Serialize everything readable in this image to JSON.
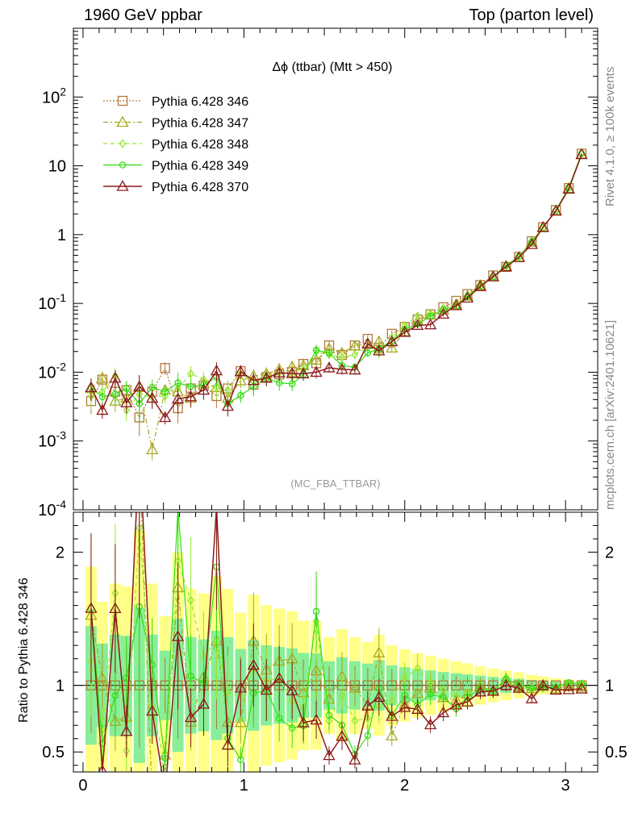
{
  "header": {
    "left": "1960 GeV ppbar",
    "right": "Top (parton level)"
  },
  "side_labels": {
    "rivet": "Rivet 4.1.0, ≥ 100k events",
    "mcplots": "mcplots.cern.ch [arXiv:2401.10621]"
  },
  "colors": {
    "s346": "#b07a3a",
    "s347": "#a8a820",
    "s348": "#99e633",
    "s349": "#33dd11",
    "s370": "#8b1a1a",
    "band_yellow": "#ffff88",
    "band_green": "#88ee99"
  },
  "chart_data": {
    "type": "line",
    "title": "Δϕ (ttbar) (Mtt > 450)",
    "watermark": "(MC_FBA_TTBAR)",
    "xlabel": "",
    "ylabel_ratio": "Ratio to Pythia 6.428 346",
    "xlim": [
      -0.06,
      3.2
    ],
    "ylim": [
      0.0001,
      1000
    ],
    "ylim_ratio": [
      0.35,
      2.3
    ],
    "yscale": "log",
    "x_ticks": [
      "0",
      "1",
      "2",
      "3"
    ],
    "y_ticks": [
      "10^-4",
      "10^-3",
      "10^-2",
      "10^-1",
      "1",
      "10",
      "10^2"
    ],
    "ratio_ticks": [
      "0.5",
      "1",
      "2"
    ],
    "legend": [
      "Pythia 6.428 346",
      "Pythia 6.428 347",
      "Pythia 6.428 348",
      "Pythia 6.428 349",
      "Pythia 6.428 370"
    ],
    "x": [
      0.05,
      0.12,
      0.2,
      0.27,
      0.35,
      0.43,
      0.51,
      0.59,
      0.67,
      0.75,
      0.83,
      0.9,
      0.98,
      1.06,
      1.14,
      1.22,
      1.3,
      1.37,
      1.45,
      1.53,
      1.61,
      1.69,
      1.77,
      1.84,
      1.92,
      2.0,
      2.08,
      2.16,
      2.24,
      2.32,
      2.39,
      2.47,
      2.55,
      2.63,
      2.71,
      2.79,
      2.86,
      2.94,
      3.02,
      3.1
    ],
    "series": [
      {
        "name": "Pythia 6.428 346",
        "marker": "square",
        "values": [
          0.0038,
          0.0078,
          0.0052,
          0.0055,
          0.0022,
          0.0052,
          0.0115,
          0.003,
          0.0058,
          0.0064,
          0.0045,
          0.0058,
          0.0104,
          0.0066,
          0.0085,
          0.0093,
          0.01,
          0.0132,
          0.0135,
          0.0245,
          0.0178,
          0.0245,
          0.0305,
          0.0225,
          0.0362,
          0.0455,
          0.0585,
          0.0695,
          0.088,
          0.109,
          0.137,
          0.185,
          0.255,
          0.34,
          0.475,
          0.8,
          1.28,
          2.28,
          4.75,
          15.0
        ]
      },
      {
        "name": "Pythia 6.428 347",
        "marker": "triangle",
        "values": [
          0.0058,
          0.0082,
          0.0038,
          0.0042,
          0.006,
          0.00075,
          0.0055,
          0.0052,
          0.0042,
          0.0068,
          0.006,
          0.0042,
          0.0075,
          0.0088,
          0.0095,
          0.011,
          0.012,
          0.0125,
          0.015,
          0.022,
          0.019,
          0.024,
          0.026,
          0.028,
          0.0225,
          0.039,
          0.055,
          0.068,
          0.08,
          0.097,
          0.128,
          0.183,
          0.245,
          0.35,
          0.47,
          0.78,
          1.27,
          2.22,
          4.7,
          14.8
        ]
      },
      {
        "name": "Pythia 6.428 348",
        "marker": "diamond",
        "values": [
          0.0045,
          0.0052,
          0.0088,
          0.0028,
          0.0048,
          0.0044,
          0.0045,
          0.0058,
          0.0095,
          0.0078,
          0.006,
          0.0055,
          0.0095,
          0.0074,
          0.0088,
          0.0098,
          0.0088,
          0.011,
          0.02,
          0.018,
          0.0165,
          0.018,
          0.023,
          0.019,
          0.032,
          0.048,
          0.066,
          0.071,
          0.085,
          0.1,
          0.13,
          0.18,
          0.242,
          0.36,
          0.465,
          0.78,
          1.25,
          2.24,
          4.8,
          15.2
        ]
      },
      {
        "name": "Pythia 6.428 349",
        "marker": "circle",
        "values": [
          0.006,
          0.0044,
          0.0048,
          0.0058,
          0.0035,
          0.006,
          0.0052,
          0.007,
          0.0062,
          0.0065,
          0.0085,
          0.0035,
          0.0046,
          0.0062,
          0.0082,
          0.007,
          0.0068,
          0.0092,
          0.021,
          0.019,
          0.0125,
          0.0118,
          0.019,
          0.022,
          0.028,
          0.042,
          0.05,
          0.065,
          0.08,
          0.09,
          0.125,
          0.18,
          0.245,
          0.355,
          0.48,
          0.78,
          1.26,
          2.25,
          4.85,
          15.2
        ]
      },
      {
        "name": "Pythia 6.428 370",
        "marker": "triangle",
        "values": [
          0.006,
          0.0028,
          0.0082,
          0.0036,
          0.0062,
          0.0042,
          0.0022,
          0.0041,
          0.0044,
          0.0055,
          0.0105,
          0.0032,
          0.0102,
          0.0076,
          0.0082,
          0.0098,
          0.0096,
          0.0095,
          0.01,
          0.0116,
          0.011,
          0.0108,
          0.0258,
          0.0205,
          0.0278,
          0.038,
          0.048,
          0.049,
          0.07,
          0.093,
          0.12,
          0.176,
          0.244,
          0.34,
          0.465,
          0.72,
          1.28,
          2.2,
          4.6,
          14.6
        ]
      }
    ]
  }
}
